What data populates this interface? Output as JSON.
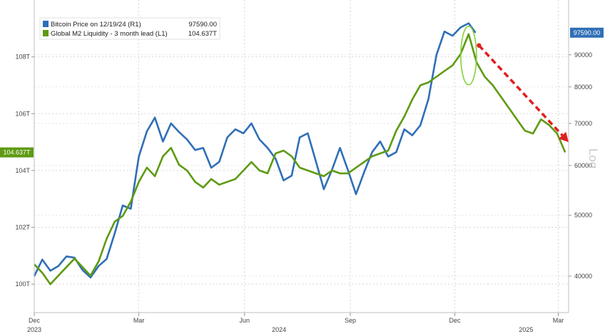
{
  "chart_data": {
    "type": "line",
    "legend": {
      "placement": "top-left",
      "items": [
        {
          "label": "Bitcoin Price on 12/19/24 (R1)",
          "value": "97590.00",
          "color": "#2f6fb6"
        },
        {
          "label": "Global M2 Liquidity - 3 month lead (L1)",
          "value": "104.637T",
          "color": "#5e9a12"
        }
      ]
    },
    "x_axis": {
      "range": [
        "2023-12-01",
        "2025-03-10"
      ],
      "ticks": [
        {
          "label": "Dec",
          "date": "2023-12-01"
        },
        {
          "label": "Mar",
          "date": "2024-03-01"
        },
        {
          "label": "Jun",
          "date": "2024-06-01"
        },
        {
          "label": "Sep",
          "date": "2024-09-01"
        },
        {
          "label": "Dec",
          "date": "2024-12-01"
        },
        {
          "label": "Mar",
          "date": "2025-03-01"
        }
      ],
      "year_labels": [
        {
          "label": "2023",
          "date": "2023-12-01"
        },
        {
          "label": "2024",
          "date": "2024-07-01"
        },
        {
          "label": "2025",
          "date": "2025-02-01"
        }
      ]
    },
    "left_axis": {
      "unit": "T",
      "range": [
        99.0,
        110.0
      ],
      "ticks": [
        {
          "label": "100T",
          "value": 100
        },
        {
          "label": "102T",
          "value": 102
        },
        {
          "label": "104T",
          "value": 104
        },
        {
          "label": "106T",
          "value": 106
        },
        {
          "label": "108T",
          "value": 108
        }
      ],
      "last_value_label": "104.637T",
      "last_value": 104.637
    },
    "right_axis": {
      "scale": "log",
      "label": "Log",
      "range": [
        35000,
        110000
      ],
      "ticks": [
        {
          "label": "40000",
          "value": 40000
        },
        {
          "label": "50000",
          "value": 50000
        },
        {
          "label": "60000",
          "value": 60000
        },
        {
          "label": "70000",
          "value": 70000
        },
        {
          "label": "80000",
          "value": 80000
        },
        {
          "label": "90000",
          "value": 90000
        }
      ],
      "last_value_label": "97590.00",
      "last_value": 97590
    },
    "grid": true,
    "series": [
      {
        "name": "Global M2 Liquidity - 3 month lead (L1)",
        "axis": "left",
        "color": "#5e9a12",
        "points": [
          [
            "2023-12-01",
            100.7
          ],
          [
            "2023-12-08",
            100.4
          ],
          [
            "2023-12-15",
            100.0
          ],
          [
            "2023-12-22",
            100.3
          ],
          [
            "2023-12-29",
            100.6
          ],
          [
            "2024-01-05",
            100.9
          ],
          [
            "2024-01-12",
            100.6
          ],
          [
            "2024-01-19",
            100.3
          ],
          [
            "2024-01-26",
            100.8
          ],
          [
            "2024-02-02",
            101.6
          ],
          [
            "2024-02-09",
            102.2
          ],
          [
            "2024-02-16",
            102.4
          ],
          [
            "2024-02-23",
            102.9
          ],
          [
            "2024-03-01",
            103.6
          ],
          [
            "2024-03-08",
            104.1
          ],
          [
            "2024-03-15",
            103.8
          ],
          [
            "2024-03-22",
            104.5
          ],
          [
            "2024-03-29",
            104.8
          ],
          [
            "2024-04-05",
            104.2
          ],
          [
            "2024-04-12",
            104.0
          ],
          [
            "2024-04-19",
            103.6
          ],
          [
            "2024-04-26",
            103.4
          ],
          [
            "2024-05-03",
            103.7
          ],
          [
            "2024-05-10",
            103.5
          ],
          [
            "2024-05-17",
            103.6
          ],
          [
            "2024-05-24",
            103.7
          ],
          [
            "2024-05-31",
            104.0
          ],
          [
            "2024-06-07",
            104.3
          ],
          [
            "2024-06-14",
            104.0
          ],
          [
            "2024-06-21",
            103.9
          ],
          [
            "2024-06-28",
            104.6
          ],
          [
            "2024-07-05",
            104.7
          ],
          [
            "2024-07-12",
            104.5
          ],
          [
            "2024-07-19",
            104.1
          ],
          [
            "2024-07-26",
            104.0
          ],
          [
            "2024-08-02",
            103.9
          ],
          [
            "2024-08-09",
            103.8
          ],
          [
            "2024-08-16",
            104.0
          ],
          [
            "2024-08-23",
            103.9
          ],
          [
            "2024-08-30",
            103.9
          ],
          [
            "2024-09-06",
            104.1
          ],
          [
            "2024-09-13",
            104.3
          ],
          [
            "2024-09-20",
            104.5
          ],
          [
            "2024-09-27",
            104.6
          ],
          [
            "2024-10-04",
            104.7
          ],
          [
            "2024-10-11",
            105.4
          ],
          [
            "2024-10-18",
            105.9
          ],
          [
            "2024-10-25",
            106.5
          ],
          [
            "2024-11-01",
            107.0
          ],
          [
            "2024-11-08",
            107.1
          ],
          [
            "2024-11-15",
            107.3
          ],
          [
            "2024-11-22",
            107.5
          ],
          [
            "2024-11-29",
            107.7
          ],
          [
            "2024-12-06",
            108.1
          ],
          [
            "2024-12-13",
            108.8
          ],
          [
            "2024-12-20",
            107.8
          ],
          [
            "2024-12-27",
            107.3
          ],
          [
            "2025-01-03",
            107.0
          ],
          [
            "2025-01-10",
            106.6
          ],
          [
            "2025-01-17",
            106.2
          ],
          [
            "2025-01-24",
            105.8
          ],
          [
            "2025-01-31",
            105.4
          ],
          [
            "2025-02-07",
            105.3
          ],
          [
            "2025-02-14",
            105.8
          ],
          [
            "2025-02-21",
            105.6
          ],
          [
            "2025-02-28",
            105.3
          ],
          [
            "2025-03-07",
            104.637
          ]
        ]
      },
      {
        "name": "Bitcoin Price on 12/19/24 (R1)",
        "axis": "right",
        "color": "#2f6fb6",
        "points": [
          [
            "2023-12-01",
            40000
          ],
          [
            "2023-12-08",
            42500
          ],
          [
            "2023-12-15",
            40800
          ],
          [
            "2023-12-22",
            41500
          ],
          [
            "2023-12-29",
            43000
          ],
          [
            "2024-01-05",
            42800
          ],
          [
            "2024-01-12",
            40900
          ],
          [
            "2024-01-19",
            39800
          ],
          [
            "2024-01-26",
            41500
          ],
          [
            "2024-02-02",
            42600
          ],
          [
            "2024-02-09",
            46800
          ],
          [
            "2024-02-16",
            51800
          ],
          [
            "2024-02-23",
            51200
          ],
          [
            "2024-03-01",
            62000
          ],
          [
            "2024-03-08",
            68000
          ],
          [
            "2024-03-15",
            71500
          ],
          [
            "2024-03-22",
            65500
          ],
          [
            "2024-03-29",
            70000
          ],
          [
            "2024-04-05",
            67800
          ],
          [
            "2024-04-12",
            66000
          ],
          [
            "2024-04-19",
            63500
          ],
          [
            "2024-04-26",
            64000
          ],
          [
            "2024-05-03",
            59500
          ],
          [
            "2024-05-10",
            60800
          ],
          [
            "2024-05-17",
            66500
          ],
          [
            "2024-05-24",
            68500
          ],
          [
            "2024-05-31",
            67500
          ],
          [
            "2024-06-07",
            70000
          ],
          [
            "2024-06-14",
            66000
          ],
          [
            "2024-06-21",
            64000
          ],
          [
            "2024-06-28",
            61500
          ],
          [
            "2024-07-05",
            56800
          ],
          [
            "2024-07-12",
            57800
          ],
          [
            "2024-07-19",
            66500
          ],
          [
            "2024-07-26",
            67500
          ],
          [
            "2024-08-02",
            61000
          ],
          [
            "2024-08-09",
            55000
          ],
          [
            "2024-08-16",
            59000
          ],
          [
            "2024-08-23",
            64000
          ],
          [
            "2024-08-30",
            59000
          ],
          [
            "2024-09-06",
            54000
          ],
          [
            "2024-09-13",
            58500
          ],
          [
            "2024-09-20",
            63000
          ],
          [
            "2024-09-27",
            65500
          ],
          [
            "2024-10-04",
            62000
          ],
          [
            "2024-10-11",
            63000
          ],
          [
            "2024-10-18",
            68500
          ],
          [
            "2024-10-25",
            67000
          ],
          [
            "2024-11-01",
            69500
          ],
          [
            "2024-11-08",
            76500
          ],
          [
            "2024-11-15",
            90000
          ],
          [
            "2024-11-22",
            98000
          ],
          [
            "2024-11-29",
            96500
          ],
          [
            "2024-12-06",
            99500
          ],
          [
            "2024-12-13",
            101000
          ],
          [
            "2024-12-19",
            97590
          ]
        ]
      }
    ],
    "annotations": [
      {
        "type": "ellipse",
        "label": "",
        "date": "2024-12-13",
        "around_series": "Global M2 Liquidity - 3 month lead (L1)"
      },
      {
        "type": "arrow",
        "label": "",
        "from": [
          "2024-12-22",
          108.4
        ],
        "to": [
          "2025-03-10",
          105.0
        ]
      }
    ],
    "colors": {
      "m2": "#5e9a12",
      "btc": "#2f6fb6",
      "annotation_ellipse": "#7fd33a",
      "arrow": "#e21f1f",
      "grid": "#d6d6d6"
    }
  }
}
